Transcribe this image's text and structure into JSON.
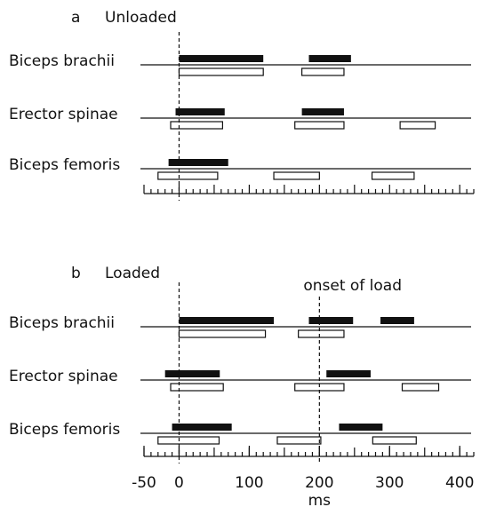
{
  "chart_data": [
    {
      "type": "timing",
      "panel": "a",
      "title": "Unloaded",
      "xlim": [
        -50,
        420
      ],
      "minor_ticks": [
        -50,
        -40,
        -30,
        -20,
        -10,
        0,
        10,
        20,
        30,
        40,
        50,
        60,
        70,
        80,
        90,
        100,
        110,
        120,
        130,
        140,
        150,
        160,
        170,
        180,
        190,
        200,
        210,
        220,
        230,
        240,
        250,
        260,
        270,
        280,
        290,
        300,
        310,
        320,
        330,
        340,
        350,
        360,
        370,
        380,
        390,
        400,
        410,
        420
      ],
      "rows": [
        {
          "label": "Biceps brachii",
          "filled": [
            [
              0,
              120
            ],
            [
              185,
              245
            ]
          ],
          "open": [
            [
              0,
              120
            ],
            [
              175,
              235
            ]
          ]
        },
        {
          "label": "Erector spinae",
          "filled": [
            [
              -5,
              65
            ],
            [
              175,
              235
            ]
          ],
          "open": [
            [
              -12,
              62
            ],
            [
              165,
              235
            ],
            [
              315,
              365
            ]
          ]
        },
        {
          "label": "Biceps femoris",
          "filled": [
            [
              -15,
              70
            ]
          ],
          "open": [
            [
              -30,
              55
            ],
            [
              135,
              200
            ],
            [
              275,
              335
            ]
          ]
        }
      ]
    },
    {
      "type": "timing",
      "panel": "b",
      "title": "Loaded",
      "xlim": [
        -50,
        420
      ],
      "xticks": [
        -50,
        0,
        100,
        200,
        300,
        400
      ],
      "minor_ticks": [
        -50,
        -40,
        -30,
        -20,
        -10,
        0,
        10,
        20,
        30,
        40,
        50,
        60,
        70,
        80,
        90,
        100,
        110,
        120,
        130,
        140,
        150,
        160,
        170,
        180,
        190,
        200,
        210,
        220,
        230,
        240,
        250,
        260,
        270,
        280,
        290,
        300,
        310,
        320,
        330,
        340,
        350,
        360,
        370,
        380,
        390,
        400,
        410,
        420
      ],
      "xlabel": "ms",
      "annotation": {
        "text": "onset of load",
        "x": 200
      },
      "rows": [
        {
          "label": "Biceps brachii",
          "filled": [
            [
              0,
              135
            ],
            [
              185,
              248
            ],
            [
              287,
              335
            ]
          ],
          "open": [
            [
              0,
              123
            ],
            [
              170,
              235
            ]
          ]
        },
        {
          "label": "Erector spinae",
          "filled": [
            [
              -20,
              58
            ],
            [
              210,
              273
            ]
          ],
          "open": [
            [
              -12,
              63
            ],
            [
              165,
              235
            ],
            [
              318,
              370
            ]
          ]
        },
        {
          "label": "Biceps femoris",
          "filled": [
            [
              -10,
              75
            ],
            [
              228,
              290
            ]
          ],
          "open": [
            [
              -30,
              57
            ],
            [
              140,
              202
            ],
            [
              276,
              338
            ]
          ]
        }
      ]
    }
  ]
}
